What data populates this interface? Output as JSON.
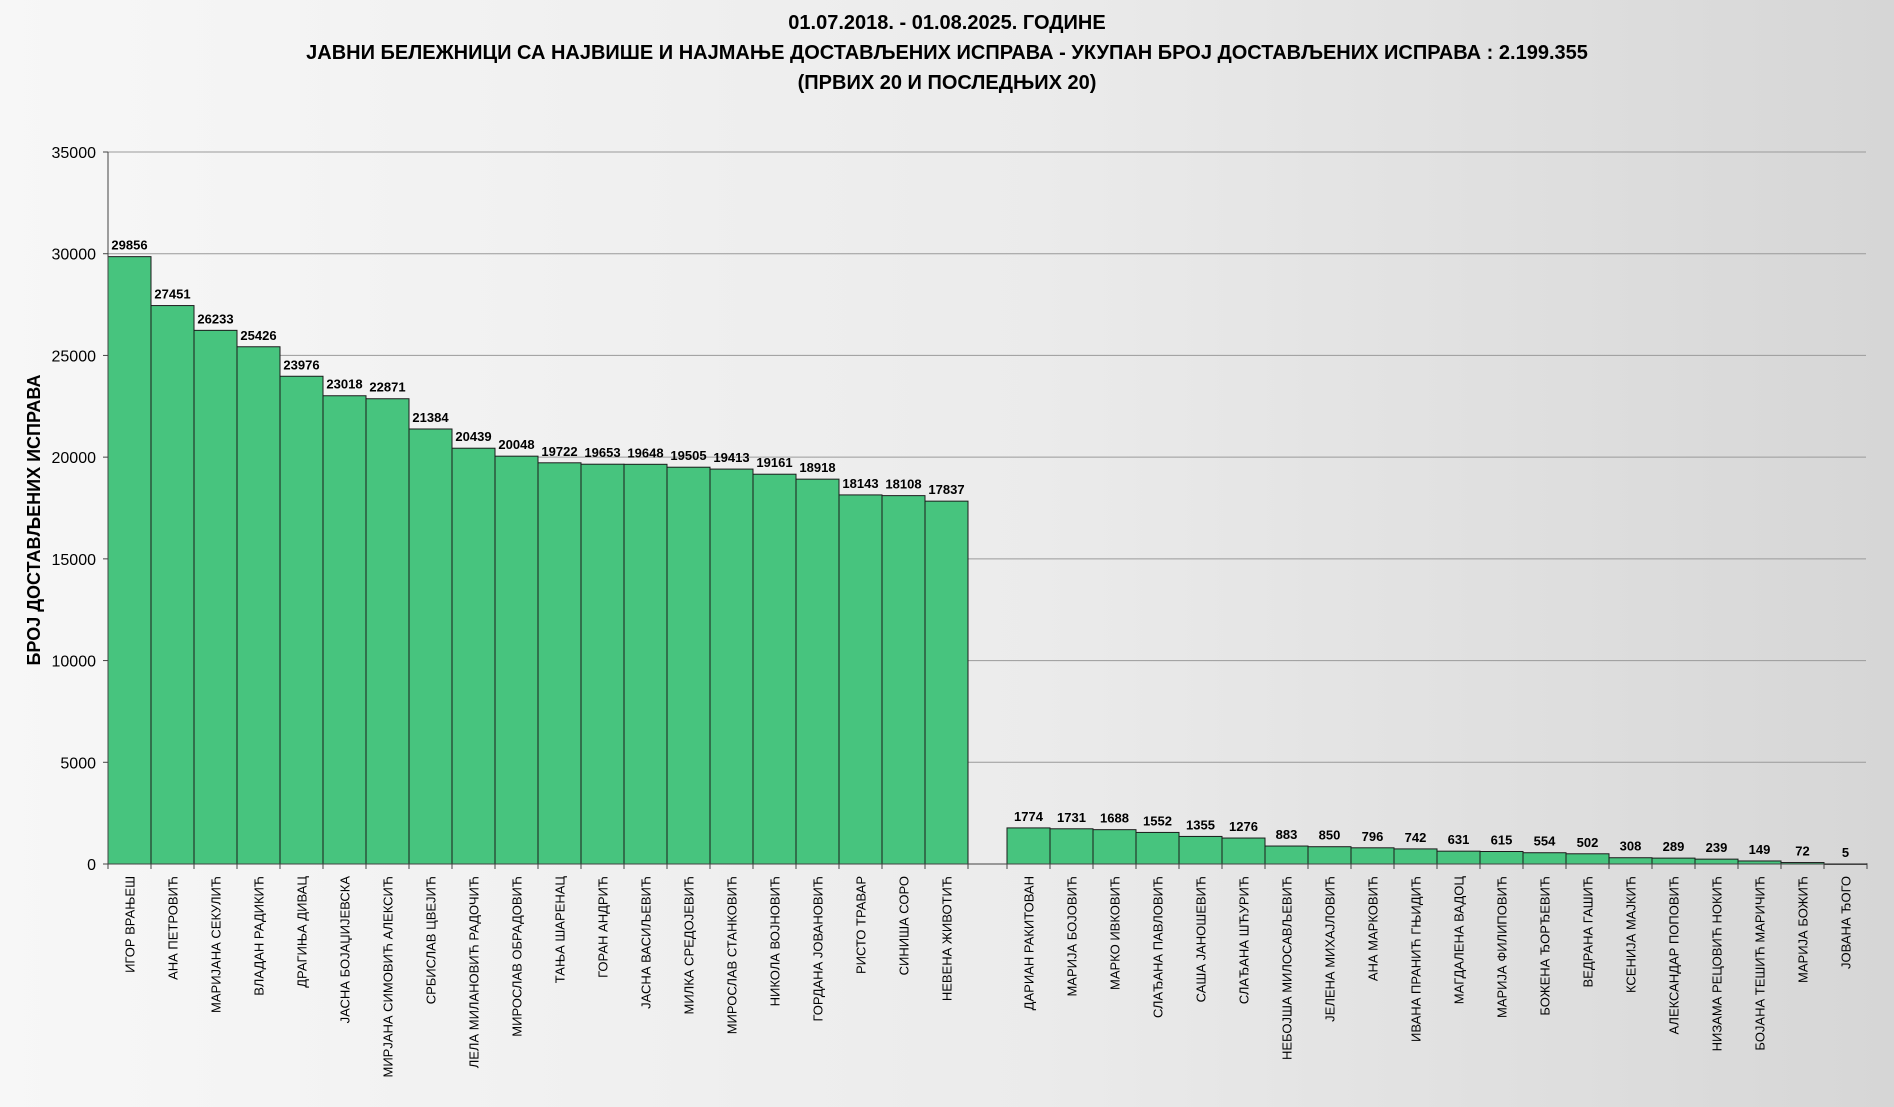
{
  "chart_data": {
    "type": "bar",
    "title_lines": [
      "01.07.2018.  - 01.08.2025.  ГОДИНЕ",
      "ЈАВНИ БЕЛЕЖНИЦИ СА НАЈВИШЕ И НАЈМАЊЕ ДОСТАВЉЕНИХ ИСПРАВА - УКУПАН БРОЈ ДОСТАВЉЕНИХ ИСПРАВА : 2.199.355",
      "(ПРВИХ 20 И ПОСЛЕДЊИХ 20)"
    ],
    "xlabel": "",
    "ylabel": "БРОЈ ДОСТАВЉЕНИХ ИСПРАВА",
    "ylim": [
      0,
      35000
    ],
    "yticks": [
      0,
      5000,
      10000,
      15000,
      20000,
      25000,
      30000,
      35000
    ],
    "grid": true,
    "bar_color": "#47c47e",
    "groups": [
      {
        "categories": [
          "ИГОР ВРАЊЕШ",
          "АНА ПЕТРОВИЋ",
          "МАРИЈАНА СЕКУЛИЋ",
          "ВЛАДАН РАДИКИЋ",
          "ДРАГИЊА ДИВАЦ",
          "ЈАСНА БОЈАЏИЈЕВСКА",
          "МИРЈАНА СИМОВИЋ  АЛЕКСИЋ",
          "СРБИСЛАВ ЦВЕЈИЋ",
          "ЛЕЛА МИЛАНОВИЋ  РАДОЧИЋ",
          "МИРОСЛАВ ОБРАДОВИЋ",
          "ТАЊА ШАРЕНАЦ",
          "ГОРАН АНДРИЋ",
          "ЈАСНА ВАСИЉЕВИЋ",
          "МИЛКА СРЕДОЈЕВИЋ",
          "МИРОСЛАВ СТАНКОВИЋ",
          "НИКОЛА ВОЈНОВИЋ",
          "ГОРДАНА ЈОВАНОВИЋ",
          "РИСТО ТРАВАР",
          "СИНИША СОРО",
          "НЕВЕНА ЖИВОТИЋ"
        ],
        "values": [
          29856,
          27451,
          26233,
          25426,
          23976,
          23018,
          22871,
          21384,
          20439,
          20048,
          19722,
          19653,
          19648,
          19505,
          19413,
          19161,
          18918,
          18143,
          18108,
          17837
        ]
      },
      {
        "categories": [
          "ДАРИАН РАКИТОВАН",
          "МАРИЈА БОЈОВИЋ",
          "МАРКО ИВКОВИЋ",
          "СЛАЂАНА ПАВЛОВИЋ",
          "САША ЈАНОШЕВИЋ",
          "СЛАЂАНА ШЋУРИЋ",
          "НЕБОЈША МИЛОСАВЉЕВИЋ",
          "ЈЕЛЕНА МИХАЈЛОВИЋ",
          "АНА МАРКОВИЋ",
          "ИВАНА ПРАНИЋ ГЊИДИЋ",
          "МАГДАЛЕНА ВАДОЦ",
          "МАРИЈА ФИЛИПОВИЋ",
          "БОЖЕНА ЂОРЂЕВИЋ",
          "ВЕДРАНА ГАШИЋ",
          "КСЕНИЈА МАЈКИЋ",
          "АЛЕКСАНДАР ПОПОВИЋ",
          "НИЗАМА РЕЦОВИЋ НОКИЋ",
          "БОЈАНА ТЕШИЋ МАРИЧИЋ",
          "МАРИЈА БОЖИЋ",
          "ЈОВАНА ЂОГО"
        ],
        "values": [
          1774,
          1731,
          1688,
          1552,
          1355,
          1276,
          883,
          850,
          796,
          742,
          631,
          615,
          554,
          502,
          308,
          289,
          239,
          149,
          72,
          5
        ]
      }
    ]
  }
}
